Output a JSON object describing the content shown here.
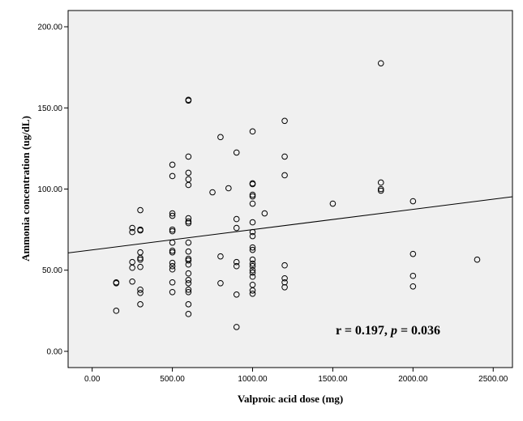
{
  "chart_data": {
    "type": "scatter",
    "title": "",
    "xlabel": "Valproic acid dose (mg)",
    "ylabel": "Ammonia concentration (ug/dL)",
    "xlim": [
      -150,
      2620
    ],
    "ylim": [
      -10,
      210
    ],
    "xticks": [
      0,
      500,
      1000,
      1500,
      2000,
      2500
    ],
    "xtick_labels": [
      "0.00",
      "500.00",
      "1000.00",
      "1500.00",
      "2000.00",
      "2500.00"
    ],
    "yticks": [
      0,
      50,
      100,
      150,
      200
    ],
    "ytick_labels": [
      "0.00",
      "50.00",
      "100.00",
      "150.00",
      "200.00"
    ],
    "grid": false,
    "background": "#f0f0f0",
    "marker": "open-circle",
    "fit_line": {
      "intercept": 62.5,
      "slope": 0.0125
    },
    "annotation": {
      "r_text": "r = 0.197, ",
      "p_symbol": "p",
      "p_text": " = 0.036"
    },
    "points": [
      [
        150,
        42.5
      ],
      [
        150,
        42
      ],
      [
        150,
        25
      ],
      [
        250,
        76
      ],
      [
        250,
        73.5
      ],
      [
        250,
        55
      ],
      [
        250,
        51.5
      ],
      [
        250,
        43
      ],
      [
        300,
        87
      ],
      [
        300,
        75
      ],
      [
        300,
        74.5
      ],
      [
        300,
        61
      ],
      [
        300,
        57.5
      ],
      [
        300,
        56.5
      ],
      [
        300,
        52
      ],
      [
        300,
        38
      ],
      [
        300,
        36
      ],
      [
        300,
        29
      ],
      [
        500,
        115
      ],
      [
        500,
        108
      ],
      [
        500,
        85
      ],
      [
        500,
        83.5
      ],
      [
        500,
        75
      ],
      [
        500,
        74
      ],
      [
        500,
        67
      ],
      [
        500,
        62
      ],
      [
        500,
        61
      ],
      [
        500,
        54.5
      ],
      [
        500,
        52.5
      ],
      [
        500,
        50.5
      ],
      [
        500,
        42.5
      ],
      [
        500,
        36.5
      ],
      [
        600,
        155
      ],
      [
        600,
        154.5
      ],
      [
        600,
        120
      ],
      [
        600,
        110
      ],
      [
        600,
        106
      ],
      [
        600,
        102.5
      ],
      [
        600,
        82
      ],
      [
        600,
        80
      ],
      [
        600,
        79
      ],
      [
        600,
        67
      ],
      [
        600,
        61.5
      ],
      [
        600,
        57
      ],
      [
        600,
        56
      ],
      [
        600,
        53.5
      ],
      [
        600,
        48
      ],
      [
        600,
        44
      ],
      [
        600,
        42
      ],
      [
        600,
        38
      ],
      [
        600,
        36.5
      ],
      [
        600,
        29
      ],
      [
        600,
        23
      ],
      [
        750,
        98
      ],
      [
        800,
        132
      ],
      [
        800,
        58.5
      ],
      [
        800,
        42
      ],
      [
        850,
        100.5
      ],
      [
        900,
        122.5
      ],
      [
        900,
        81.5
      ],
      [
        900,
        76
      ],
      [
        900,
        55
      ],
      [
        900,
        52.5
      ],
      [
        900,
        35
      ],
      [
        900,
        15
      ],
      [
        1000,
        135.5
      ],
      [
        1000,
        103.5
      ],
      [
        1000,
        103
      ],
      [
        1000,
        96.5
      ],
      [
        1000,
        95.5
      ],
      [
        1000,
        91
      ],
      [
        1000,
        79.5
      ],
      [
        1000,
        73.5
      ],
      [
        1000,
        71
      ],
      [
        1000,
        64
      ],
      [
        1000,
        62.5
      ],
      [
        1000,
        56.5
      ],
      [
        1000,
        54
      ],
      [
        1000,
        52.5
      ],
      [
        1000,
        50
      ],
      [
        1000,
        48.5
      ],
      [
        1000,
        46
      ],
      [
        1000,
        41
      ],
      [
        1000,
        37.5
      ],
      [
        1000,
        35.5
      ],
      [
        1075,
        85
      ],
      [
        1200,
        142
      ],
      [
        1200,
        120
      ],
      [
        1200,
        108.5
      ],
      [
        1200,
        53
      ],
      [
        1200,
        45
      ],
      [
        1200,
        42.5
      ],
      [
        1200,
        39.5
      ],
      [
        1500,
        91
      ],
      [
        1800,
        177.5
      ],
      [
        1800,
        104
      ],
      [
        1800,
        100
      ],
      [
        1800,
        99
      ],
      [
        2000,
        92.5
      ],
      [
        2000,
        60
      ],
      [
        2000,
        46.5
      ],
      [
        2000,
        40
      ],
      [
        2400,
        56.5
      ]
    ]
  }
}
